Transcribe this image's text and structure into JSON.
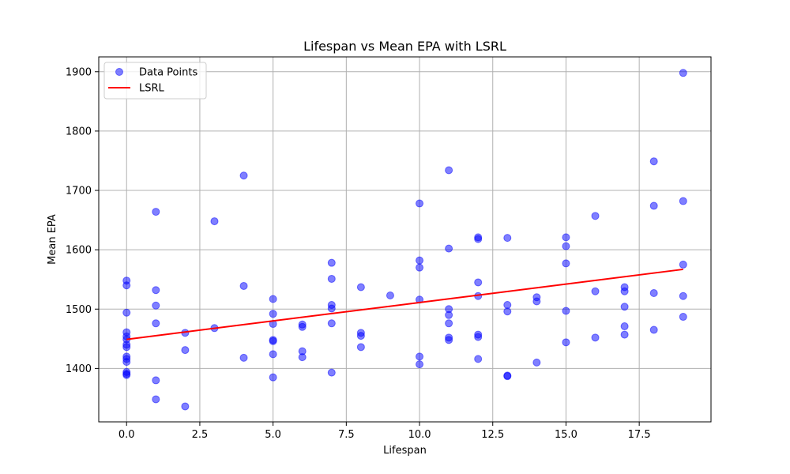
{
  "chart_data": {
    "type": "scatter",
    "title": "Lifespan vs Mean EPA with LSRL",
    "xlabel": "Lifespan",
    "ylabel": "Mean EPA",
    "xlim": [
      -0.95,
      19.95
    ],
    "ylim": [
      1310,
      1925
    ],
    "xticks": [
      0.0,
      2.5,
      5.0,
      7.5,
      10.0,
      12.5,
      15.0,
      17.5
    ],
    "xtick_labels": [
      "0.0",
      "2.5",
      "5.0",
      "7.5",
      "10.0",
      "12.5",
      "15.0",
      "17.5"
    ],
    "yticks": [
      1400,
      1500,
      1600,
      1700,
      1800,
      1900
    ],
    "ytick_labels": [
      "1400",
      "1500",
      "1600",
      "1700",
      "1800",
      "1900"
    ],
    "grid": true,
    "legend_position": "top-left",
    "series": [
      {
        "name": "Data Points",
        "kind": "scatter",
        "color": "#0000ff",
        "points": [
          [
            0,
            1548
          ],
          [
            0,
            1540
          ],
          [
            0,
            1494
          ],
          [
            0,
            1461
          ],
          [
            0,
            1454
          ],
          [
            0,
            1449
          ],
          [
            0,
            1440
          ],
          [
            0,
            1436
          ],
          [
            0,
            1420
          ],
          [
            0,
            1416
          ],
          [
            0,
            1411
          ],
          [
            0,
            1394
          ],
          [
            0,
            1391
          ],
          [
            0,
            1389
          ],
          [
            1,
            1664
          ],
          [
            1,
            1532
          ],
          [
            1,
            1506
          ],
          [
            1,
            1476
          ],
          [
            1,
            1380
          ],
          [
            1,
            1348
          ],
          [
            2,
            1460
          ],
          [
            2,
            1431
          ],
          [
            2,
            1336
          ],
          [
            3,
            1648
          ],
          [
            3,
            1468
          ],
          [
            4,
            1725
          ],
          [
            4,
            1539
          ],
          [
            4,
            1418
          ],
          [
            5,
            1517
          ],
          [
            5,
            1492
          ],
          [
            5,
            1475
          ],
          [
            5,
            1448
          ],
          [
            5,
            1446
          ],
          [
            5,
            1424
          ],
          [
            5,
            1385
          ],
          [
            6,
            1474
          ],
          [
            6,
            1470
          ],
          [
            6,
            1429
          ],
          [
            6,
            1419
          ],
          [
            7,
            1578
          ],
          [
            7,
            1551
          ],
          [
            7,
            1507
          ],
          [
            7,
            1501
          ],
          [
            7,
            1476
          ],
          [
            7,
            1393
          ],
          [
            8,
            1537
          ],
          [
            8,
            1460
          ],
          [
            8,
            1455
          ],
          [
            8,
            1436
          ],
          [
            9,
            1523
          ],
          [
            10,
            1678
          ],
          [
            10,
            1582
          ],
          [
            10,
            1570
          ],
          [
            10,
            1516
          ],
          [
            10,
            1420
          ],
          [
            10,
            1407
          ],
          [
            11,
            1734
          ],
          [
            11,
            1602
          ],
          [
            11,
            1500
          ],
          [
            11,
            1490
          ],
          [
            11,
            1476
          ],
          [
            11,
            1452
          ],
          [
            11,
            1448
          ],
          [
            12,
            1621
          ],
          [
            12,
            1618
          ],
          [
            12,
            1545
          ],
          [
            12,
            1522
          ],
          [
            12,
            1457
          ],
          [
            12,
            1453
          ],
          [
            12,
            1416
          ],
          [
            13,
            1620
          ],
          [
            13,
            1507
          ],
          [
            13,
            1496
          ],
          [
            13,
            1388
          ],
          [
            13,
            1387
          ],
          [
            14,
            1520
          ],
          [
            14,
            1513
          ],
          [
            14,
            1410
          ],
          [
            15,
            1621
          ],
          [
            15,
            1606
          ],
          [
            15,
            1577
          ],
          [
            15,
            1497
          ],
          [
            15,
            1444
          ],
          [
            16,
            1657
          ],
          [
            16,
            1530
          ],
          [
            16,
            1452
          ],
          [
            17,
            1537
          ],
          [
            17,
            1530
          ],
          [
            17,
            1504
          ],
          [
            17,
            1471
          ],
          [
            17,
            1457
          ],
          [
            18,
            1749
          ],
          [
            18,
            1674
          ],
          [
            18,
            1527
          ],
          [
            18,
            1465
          ],
          [
            19,
            1898
          ],
          [
            19,
            1682
          ],
          [
            19,
            1575
          ],
          [
            19,
            1522
          ],
          [
            19,
            1487
          ]
        ]
      },
      {
        "name": "LSRL",
        "kind": "line",
        "color": "#ff0000",
        "points": [
          [
            0,
            1449
          ],
          [
            19,
            1567
          ]
        ]
      }
    ]
  }
}
